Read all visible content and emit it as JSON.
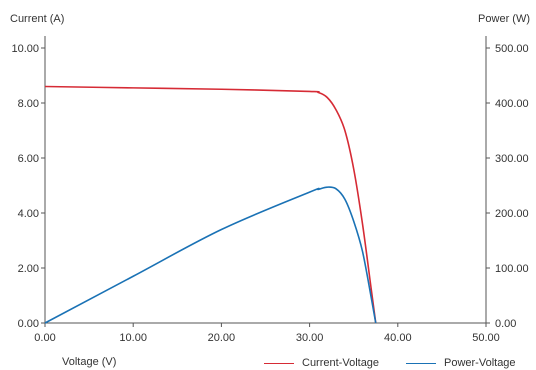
{
  "chart_data": {
    "type": "line",
    "y_left_label": "Current (A)",
    "y_right_label": "Power (W)",
    "xlabel": "Voltage (V)",
    "xlim": [
      0,
      50
    ],
    "ylim_left": [
      0,
      10
    ],
    "ylim_right": [
      0,
      500
    ],
    "x_ticks": [
      "0.00",
      "10.00",
      "20.00",
      "30.00",
      "40.00",
      "50.00"
    ],
    "y_left_ticks": [
      "0.00",
      "2.00",
      "4.00",
      "6.00",
      "8.00",
      "10.00"
    ],
    "y_right_ticks": [
      "0.00",
      "100.00",
      "200.00",
      "300.00",
      "400.00",
      "500.00"
    ],
    "grid": false,
    "legend_position": "bottom-right",
    "series": [
      {
        "name": "Current-Voltage",
        "axis": "left",
        "color": "#d62b35",
        "x": [
          0,
          10,
          20,
          30,
          31,
          32,
          33,
          34,
          35,
          36,
          37,
          37.5
        ],
        "y": [
          8.6,
          8.55,
          8.5,
          8.42,
          8.38,
          8.2,
          7.75,
          7.0,
          5.6,
          3.6,
          1.2,
          0
        ]
      },
      {
        "name": "Power-Voltage",
        "axis": "right",
        "color": "#1a72b5",
        "x": [
          0,
          10,
          20,
          30,
          31,
          32,
          33,
          34,
          35,
          36,
          37,
          37.5
        ],
        "y": [
          0,
          85,
          170,
          238,
          243,
          247,
          244,
          225,
          185,
          130,
          45,
          0
        ]
      }
    ]
  }
}
